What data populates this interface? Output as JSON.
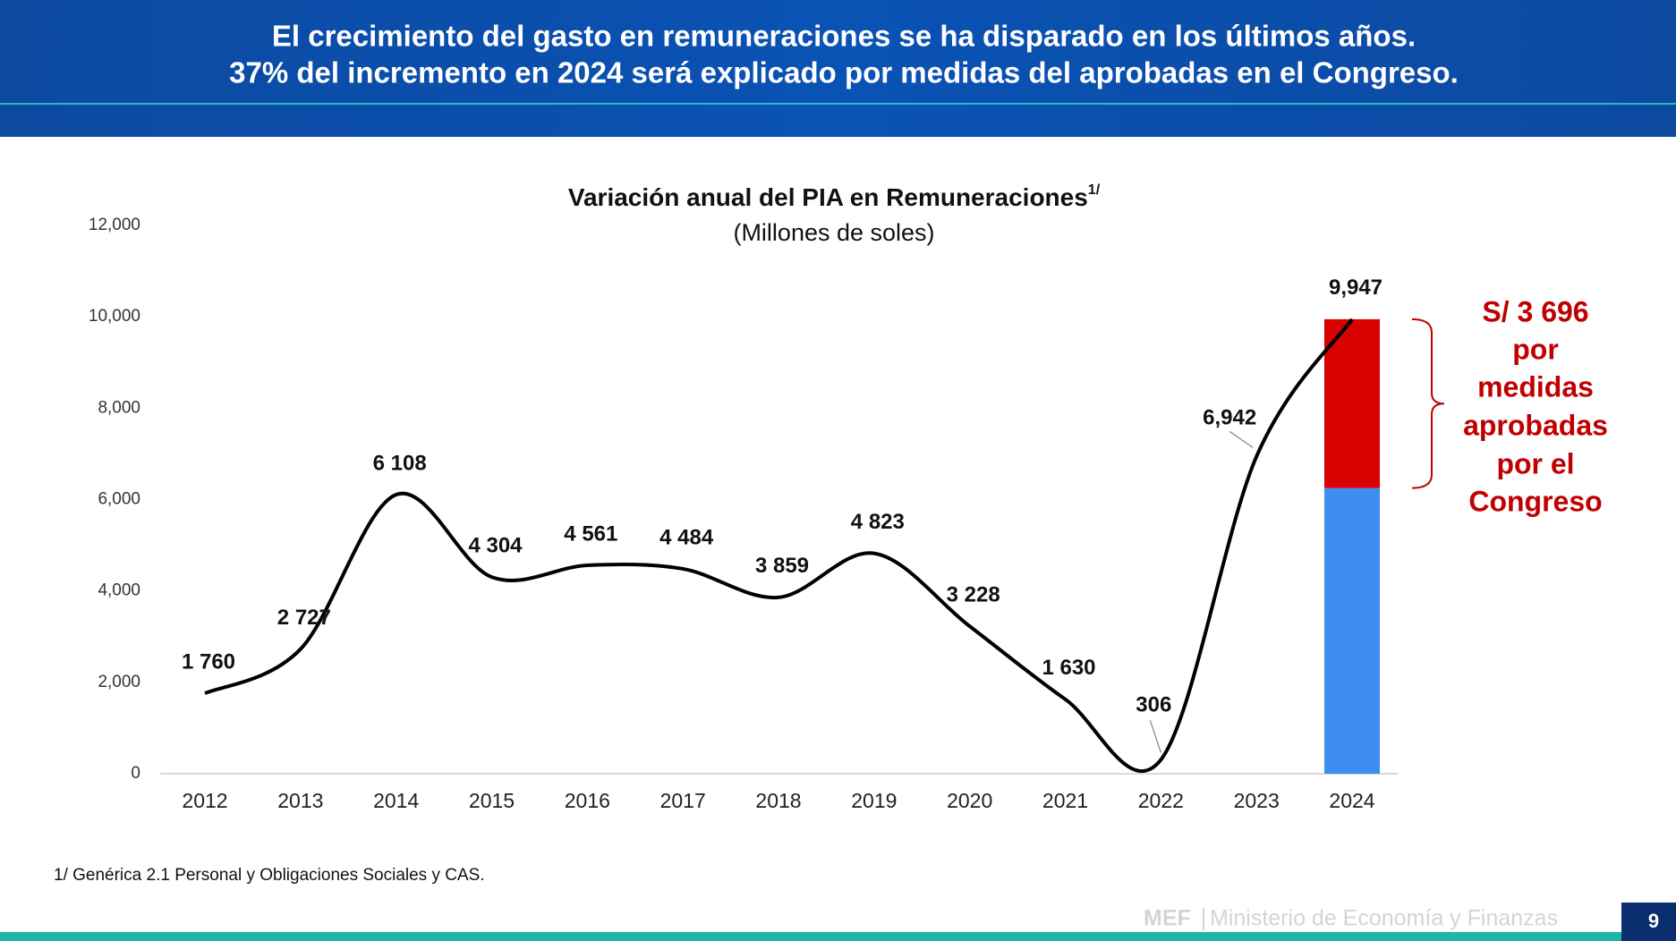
{
  "header": {
    "title_lines": [
      "El crecimiento del gasto en remuneraciones se ha disparado en los últimos años.",
      "37% del incremento en 2024 será explicado por medidas del aprobadas en el Congreso."
    ]
  },
  "chart_data": {
    "type": "line",
    "title": "Variación anual del PIA en Remuneraciones",
    "title_note": "1/",
    "subtitle": "(Millones de soles)",
    "categories": [
      "2012",
      "2013",
      "2014",
      "2015",
      "2016",
      "2017",
      "2018",
      "2019",
      "2020",
      "2021",
      "2022",
      "2023",
      "2024"
    ],
    "series": [
      {
        "color": "#000000",
        "values": [
          1760,
          2727,
          6108,
          4304,
          4561,
          4484,
          3859,
          4823,
          3228,
          1630,
          306,
          6942,
          9947
        ],
        "value_labels": [
          "1 760",
          "2 727",
          "6 108",
          "4 304",
          "4 561",
          "4 484",
          "3 859",
          "4 823",
          "3 228",
          "1 630",
          "306",
          "6,942",
          "9,947"
        ]
      }
    ],
    "bar_overlay": {
      "category_index": 12,
      "values": [
        6251,
        3696
      ],
      "colors": [
        "#3d8ef0",
        "#d90000"
      ]
    },
    "annotation_lines": [
      "S/ 3 696",
      "por",
      "medidas",
      "aprobadas",
      "por el",
      "Congreso"
    ],
    "annotation_color": "#c00000",
    "ylim": [
      0,
      12000
    ],
    "yticks": [
      0,
      {
        "value": 2000,
        "label": "2,000"
      },
      {
        "value": 4000,
        "label": "4,000"
      },
      {
        "value": 6000,
        "label": "6,000"
      },
      {
        "value": 8000,
        "label": "8,000"
      },
      {
        "value": 10000,
        "label": "10,000"
      },
      {
        "value": 12000,
        "label": "12,000"
      }
    ],
    "grid": false,
    "footnote": "1/ Genérica 2.1 Personal y Obligaciones Sociales y CAS."
  },
  "footer": {
    "logo": "MEF",
    "ministry": "Ministerio de Economía y Finanzas",
    "page": "9"
  }
}
